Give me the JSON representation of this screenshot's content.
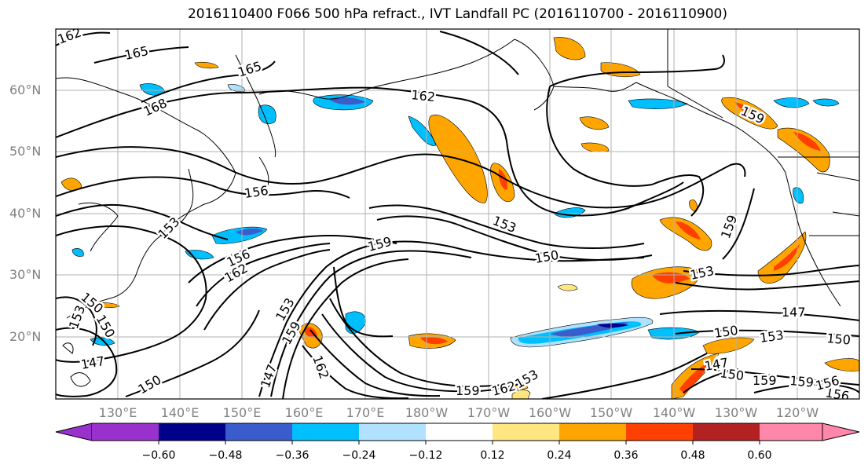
{
  "title": "2016110400 F066 500 hPa refract., IVT Landfall PC (2016110700 - 2016110900)",
  "lat_labels": [
    "60°N",
    "50°N",
    "40°N",
    "30°N",
    "20°N"
  ],
  "lon_labels": [
    "130°E",
    "140°E",
    "150°E",
    "160°E",
    "170°E",
    "180°W",
    "170°W",
    "160°W",
    "150°W",
    "140°W",
    "130°W",
    "120°W"
  ],
  "contour_labels": [
    "162",
    "165",
    "165",
    "168",
    "162",
    "159",
    "156",
    "153",
    "156",
    "162",
    "159",
    "153",
    "150",
    "153",
    "159",
    "150",
    "153",
    "150",
    "147",
    "147",
    "150",
    "153",
    "150",
    "159",
    "162",
    "153",
    "147",
    "150",
    "153",
    "159",
    "159",
    "156",
    "150",
    "156",
    "162",
    "159",
    "147"
  ],
  "colorbar": {
    "ticks": [
      "−0.60",
      "−0.48",
      "−0.36",
      "−0.24",
      "−0.12",
      "0.12",
      "0.24",
      "0.36",
      "0.48",
      "0.60"
    ],
    "colors": [
      "#9932cc",
      "#00008b",
      "#3a5ccc",
      "#00bfff",
      "#b0e2ff",
      "#ffffff",
      "#ffe680",
      "#ffa500",
      "#ff4000",
      "#b22222",
      "#ff88aa"
    ]
  }
}
